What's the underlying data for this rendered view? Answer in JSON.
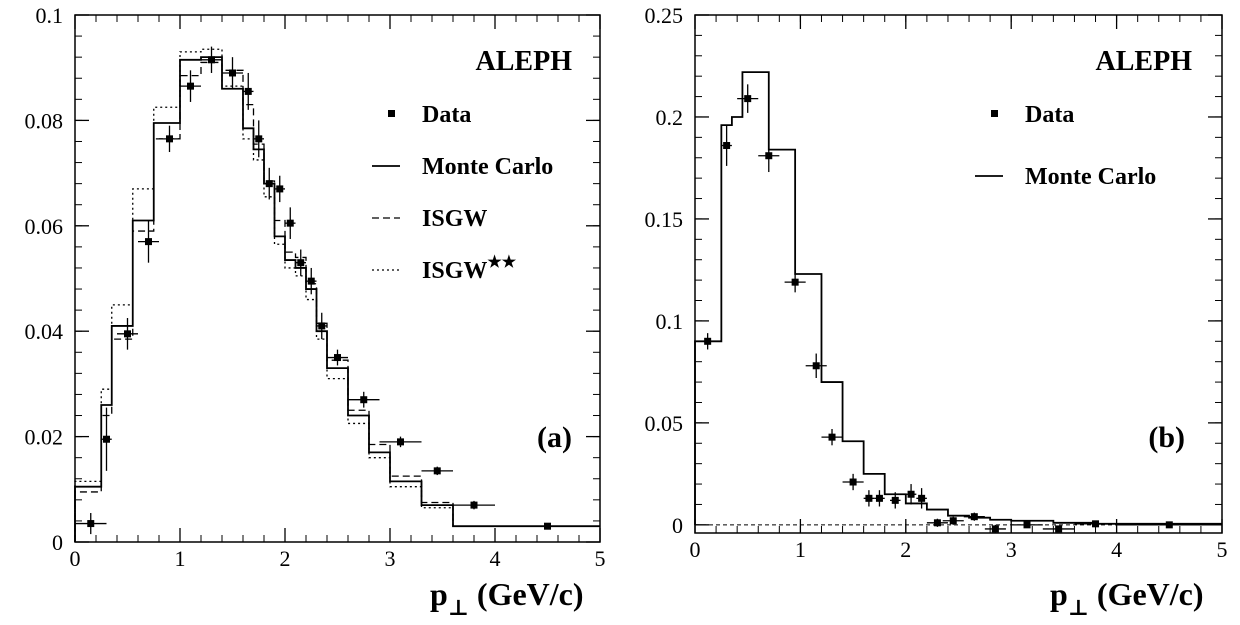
{
  "chart_data": [
    {
      "type": "histogram",
      "panel_label": "(a)",
      "experiment": "ALEPH",
      "xlabel_main": "p",
      "xlabel_sub": "⊥",
      "xlabel_unit": "(GeV/c)",
      "ylabel": "",
      "xlim": [
        0,
        5
      ],
      "ylim": [
        0,
        0.1
      ],
      "x_ticks": [
        0,
        1,
        2,
        3,
        4,
        5
      ],
      "x_tick_labels": [
        "0",
        "1",
        "2",
        "3",
        "4",
        "5"
      ],
      "y_ticks": [
        0,
        0.02,
        0.04,
        0.06,
        0.08,
        0.1
      ],
      "y_tick_labels": [
        "0",
        "0.02",
        "0.04",
        "0.06",
        "0.08",
        "0.1"
      ],
      "bin_edges": [
        0,
        0.25,
        0.35,
        0.55,
        0.75,
        1.0,
        1.2,
        1.4,
        1.6,
        1.7,
        1.8,
        1.9,
        2.0,
        2.1,
        2.2,
        2.3,
        2.4,
        2.6,
        2.8,
        3.0,
        3.3,
        3.6,
        4.0,
        5.0
      ],
      "legend": [
        {
          "label": "Data",
          "style": "marker"
        },
        {
          "label": "Monte Carlo",
          "style": "solid"
        },
        {
          "label": "ISGW",
          "style": "dashed"
        },
        {
          "label": "ISGW",
          "superscript": "★★",
          "style": "dotted"
        }
      ],
      "histograms": [
        {
          "style": "solid",
          "values": [
            0.0105,
            0.026,
            0.041,
            0.061,
            0.0795,
            0.0915,
            0.092,
            0.086,
            0.0785,
            0.0745,
            0.068,
            0.058,
            0.0535,
            0.052,
            0.048,
            0.04,
            0.033,
            0.024,
            0.017,
            0.0115,
            0.007,
            0.003,
            0.003
          ]
        },
        {
          "style": "dashed",
          "values": [
            0.0095,
            0.024,
            0.0385,
            0.059,
            0.0765,
            0.0885,
            0.091,
            0.0895,
            0.083,
            0.0755,
            0.0685,
            0.061,
            0.055,
            0.054,
            0.049,
            0.0415,
            0.0345,
            0.025,
            0.0185,
            0.0125,
            0.0075,
            0.003,
            0.003
          ]
        },
        {
          "style": "dotted",
          "values": [
            0.0115,
            0.029,
            0.045,
            0.067,
            0.0825,
            0.093,
            0.0935,
            0.0865,
            0.0765,
            0.0725,
            0.0655,
            0.0565,
            0.052,
            0.0505,
            0.046,
            0.0385,
            0.031,
            0.0225,
            0.016,
            0.0105,
            0.0065,
            0.003,
            0.003
          ]
        }
      ],
      "data_points": [
        {
          "x": 0.15,
          "y": 0.0035,
          "xerr": 0.15,
          "yerr": 0.002
        },
        {
          "x": 0.3,
          "y": 0.0195,
          "xerr": 0.05,
          "yerr": 0.006
        },
        {
          "x": 0.5,
          "y": 0.0395,
          "xerr": 0.1,
          "yerr": 0.003
        },
        {
          "x": 0.7,
          "y": 0.057,
          "xerr": 0.1,
          "yerr": 0.004
        },
        {
          "x": 0.9,
          "y": 0.0765,
          "xerr": 0.1,
          "yerr": 0.0025
        },
        {
          "x": 1.1,
          "y": 0.0865,
          "xerr": 0.1,
          "yerr": 0.003
        },
        {
          "x": 1.3,
          "y": 0.0915,
          "xerr": 0.1,
          "yerr": 0.0025
        },
        {
          "x": 1.5,
          "y": 0.089,
          "xerr": 0.1,
          "yerr": 0.003
        },
        {
          "x": 1.65,
          "y": 0.0855,
          "xerr": 0.05,
          "yerr": 0.0035
        },
        {
          "x": 1.75,
          "y": 0.0765,
          "xerr": 0.05,
          "yerr": 0.0035
        },
        {
          "x": 1.85,
          "y": 0.068,
          "xerr": 0.05,
          "yerr": 0.003
        },
        {
          "x": 1.95,
          "y": 0.067,
          "xerr": 0.05,
          "yerr": 0.0025
        },
        {
          "x": 2.05,
          "y": 0.0605,
          "xerr": 0.05,
          "yerr": 0.003
        },
        {
          "x": 2.15,
          "y": 0.053,
          "xerr": 0.05,
          "yerr": 0.0025
        },
        {
          "x": 2.25,
          "y": 0.0495,
          "xerr": 0.05,
          "yerr": 0.0025
        },
        {
          "x": 2.35,
          "y": 0.041,
          "xerr": 0.05,
          "yerr": 0.0025
        },
        {
          "x": 2.5,
          "y": 0.035,
          "xerr": 0.1,
          "yerr": 0.0015
        },
        {
          "x": 2.75,
          "y": 0.027,
          "xerr": 0.15,
          "yerr": 0.0015
        },
        {
          "x": 3.1,
          "y": 0.019,
          "xerr": 0.2,
          "yerr": 0.001
        },
        {
          "x": 3.45,
          "y": 0.0135,
          "xerr": 0.15,
          "yerr": 0.0008
        },
        {
          "x": 3.8,
          "y": 0.007,
          "xerr": 0.2,
          "yerr": 0.0008
        },
        {
          "x": 4.5,
          "y": 0.003,
          "xerr": 0.5,
          "yerr": 0.0003
        }
      ]
    },
    {
      "type": "histogram",
      "panel_label": "(b)",
      "experiment": "ALEPH",
      "xlabel_main": "p",
      "xlabel_sub": "⊥",
      "xlabel_unit": "(GeV/c)",
      "ylabel": "",
      "xlim": [
        0,
        5
      ],
      "ylim": [
        -0.004,
        0.25
      ],
      "x_ticks": [
        0,
        1,
        2,
        3,
        4,
        5
      ],
      "x_tick_labels": [
        "0",
        "1",
        "2",
        "3",
        "4",
        "5"
      ],
      "y_ticks": [
        0,
        0.05,
        0.1,
        0.15,
        0.2,
        0.25
      ],
      "y_tick_labels": [
        "0",
        "0.05",
        "0.1",
        "0.15",
        "0.2",
        "0.25"
      ],
      "zero_line": true,
      "bin_edges": [
        0,
        0.25,
        0.35,
        0.45,
        0.7,
        0.95,
        1.2,
        1.4,
        1.6,
        1.8,
        2.0,
        2.2,
        2.4,
        2.6,
        2.8,
        3.0,
        3.4,
        3.8,
        5.0
      ],
      "legend": [
        {
          "label": "Data",
          "style": "marker"
        },
        {
          "label": "Monte Carlo",
          "style": "solid"
        }
      ],
      "histograms": [
        {
          "style": "solid",
          "values": [
            0.09,
            0.196,
            0.2,
            0.222,
            0.184,
            0.123,
            0.07,
            0.041,
            0.025,
            0.015,
            0.0105,
            0.0075,
            0.0045,
            0.0035,
            0.0025,
            0.002,
            0.001,
            0.0005
          ]
        }
      ],
      "data_points": [
        {
          "x": 0.12,
          "y": 0.09,
          "xerr": 0.12,
          "yerr": 0.004
        },
        {
          "x": 0.3,
          "y": 0.186,
          "xerr": 0.05,
          "yerr": 0.01
        },
        {
          "x": 0.5,
          "y": 0.209,
          "xerr": 0.1,
          "yerr": 0.007
        },
        {
          "x": 0.7,
          "y": 0.181,
          "xerr": 0.1,
          "yerr": 0.008
        },
        {
          "x": 0.95,
          "y": 0.119,
          "xerr": 0.1,
          "yerr": 0.005
        },
        {
          "x": 1.15,
          "y": 0.078,
          "xerr": 0.1,
          "yerr": 0.006
        },
        {
          "x": 1.3,
          "y": 0.043,
          "xerr": 0.1,
          "yerr": 0.004
        },
        {
          "x": 1.5,
          "y": 0.021,
          "xerr": 0.1,
          "yerr": 0.004
        },
        {
          "x": 1.65,
          "y": 0.013,
          "xerr": 0.05,
          "yerr": 0.004
        },
        {
          "x": 1.75,
          "y": 0.013,
          "xerr": 0.05,
          "yerr": 0.004
        },
        {
          "x": 1.9,
          "y": 0.012,
          "xerr": 0.05,
          "yerr": 0.004
        },
        {
          "x": 2.05,
          "y": 0.015,
          "xerr": 0.05,
          "yerr": 0.005
        },
        {
          "x": 2.15,
          "y": 0.013,
          "xerr": 0.05,
          "yerr": 0.005
        },
        {
          "x": 2.3,
          "y": 0.001,
          "xerr": 0.1,
          "yerr": 0.002
        },
        {
          "x": 2.45,
          "y": 0.002,
          "xerr": 0.1,
          "yerr": 0.002
        },
        {
          "x": 2.65,
          "y": 0.004,
          "xerr": 0.1,
          "yerr": 0.002
        },
        {
          "x": 2.85,
          "y": -0.002,
          "xerr": 0.1,
          "yerr": 0.002
        },
        {
          "x": 3.15,
          "y": 0.0,
          "xerr": 0.15,
          "yerr": 0.0015
        },
        {
          "x": 3.45,
          "y": -0.002,
          "xerr": 0.15,
          "yerr": 0.0015
        },
        {
          "x": 3.8,
          "y": 0.0005,
          "xerr": 0.2,
          "yerr": 0.001
        },
        {
          "x": 4.5,
          "y": 0.0,
          "xerr": 0.5,
          "yerr": 0.001
        }
      ]
    }
  ]
}
